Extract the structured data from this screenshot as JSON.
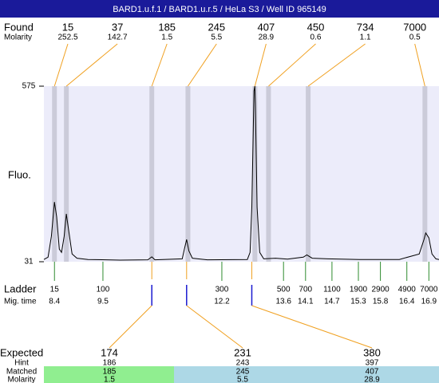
{
  "chart_data": {
    "type": "electropherogram",
    "title": "BARD1.u.f.1 / BARD1.u.r.5 / HeLa S3 / Well ID 965149",
    "y_label": "Fluo.",
    "ylim": [
      31,
      575
    ],
    "yticks": [
      31,
      575
    ],
    "xlim": [
      8.16,
      17.13
    ],
    "x": [
      8.16,
      8.255,
      8.33,
      8.4,
      8.45,
      8.51,
      8.56,
      8.62,
      8.67,
      8.73,
      8.8,
      8.91,
      9.16,
      9.89,
      10.52,
      10.61,
      10.68,
      11.3,
      11.35,
      11.4,
      11.45,
      11.53,
      11.87,
      12.78,
      12.84,
      12.88,
      12.93,
      12.95,
      12.96,
      13.0,
      13.06,
      13.15,
      13.42,
      13.69,
      14.05,
      14.13,
      14.25,
      14.6,
      15.32,
      16.23,
      16.68,
      16.79,
      16.83,
      16.9,
      16.97,
      17.06,
      17.13
    ],
    "values": [
      38,
      45,
      110,
      216,
      170,
      70,
      60,
      110,
      179,
      120,
      55,
      42,
      38,
      36,
      37,
      46,
      37,
      40,
      70,
      100,
      65,
      42,
      37,
      38,
      60,
      200,
      560,
      575,
      520,
      200,
      60,
      40,
      42,
      39,
      45,
      52,
      42,
      40,
      38,
      38,
      55,
      100,
      120,
      105,
      55,
      40,
      38
    ],
    "color": "#000000",
    "plot_color": "#ececfa",
    "title_color": "#1a1a9a",
    "found": {
      "label": "Found",
      "molarity_label": "Molarity",
      "sizes": [
        15,
        37,
        185,
        245,
        407,
        450,
        734,
        7000
      ],
      "molarity": [
        252.5,
        142.7,
        1.5,
        5.5,
        28.9,
        0.6,
        1.1,
        0.5
      ],
      "times": [
        8.4,
        8.67,
        10.61,
        11.43,
        12.95,
        13.26,
        14.16,
        16.81
      ],
      "line_color": "#f0a020",
      "band_color": "#cbcbd9"
    },
    "ladder": {
      "label": "Ladder",
      "time_label": "Mig. time",
      "sizes": [
        15,
        100,
        300,
        500,
        700,
        1100,
        1900,
        2900,
        4900,
        7000
      ],
      "times": [
        8.4,
        9.5,
        12.2,
        13.6,
        14.1,
        14.7,
        15.3,
        15.8,
        16.4,
        16.9
      ],
      "color": "#2e8b2e"
    },
    "expected": {
      "label": "Expected",
      "hint_label": "Hint",
      "matched_label": "Matched",
      "molarity_label": "Molarity",
      "sizes": [
        174,
        231,
        380
      ],
      "hint": [
        186,
        243,
        397
      ],
      "matched": [
        185,
        245,
        407
      ],
      "molarity": [
        1.5,
        5.5,
        28.9
      ],
      "times": [
        10.61,
        11.4,
        12.88
      ],
      "marker_color": "#1a1ad0",
      "colors": [
        "#90ee90",
        "#add8e6",
        "#add8e6"
      ]
    }
  }
}
